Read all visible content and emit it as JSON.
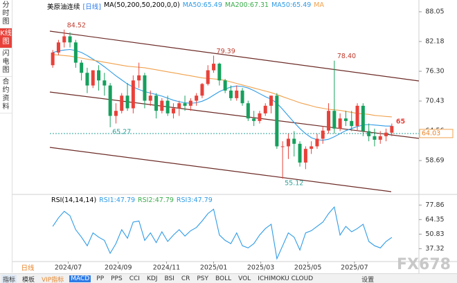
{
  "sidebar": [
    "分时图",
    "K线图",
    "闪电图",
    "合约资料"
  ],
  "chart_data": {
    "type": "candlestick",
    "title": "美原油连续",
    "period": "[日线]",
    "indicator": "MA(50,200,50,200,0,0)",
    "legend": [
      "MA50:65.49",
      "MA200:67.31",
      "MA50:65.49",
      "MA"
    ],
    "open": [
      77.5,
      80,
      82,
      83.2,
      82,
      78,
      76,
      73.5,
      76.5,
      74.5,
      73.5,
      67.5,
      68.5,
      71.5,
      69,
      74.5,
      75.5,
      70.5,
      71.5,
      68.5,
      70.5,
      68,
      69,
      70,
      69.5,
      70.5,
      71.5,
      73.8,
      76.5,
      77.8,
      74.5,
      72.5,
      71,
      72.5,
      70,
      67,
      66.5,
      68,
      69.5,
      71.5,
      61.5,
      61.5,
      63,
      62,
      58.3,
      61,
      61.5,
      63,
      64.6,
      68.5,
      65,
      67,
      66.5,
      65.5,
      69.5,
      64.5,
      63.5,
      62.8,
      63.5,
      64.2
    ],
    "high": [
      80.5,
      82.5,
      84.52,
      84,
      82.5,
      78.5,
      77,
      76.5,
      77.5,
      76,
      74,
      70,
      72,
      74,
      75.5,
      78,
      76,
      72.5,
      72,
      71,
      71.5,
      70,
      70.5,
      71.5,
      71,
      72,
      74,
      77.5,
      79.39,
      78,
      74.8,
      73.5,
      73.5,
      73,
      70.5,
      68.5,
      68.5,
      70,
      71.5,
      72,
      62.5,
      64,
      64.5,
      62.5,
      61.5,
      62.5,
      64,
      65.5,
      70,
      78.4,
      68,
      68.5,
      68.5,
      70,
      70,
      66,
      65,
      64.5,
      65,
      66
    ],
    "low": [
      77,
      79.5,
      81,
      81,
      77,
      74.5,
      72,
      73,
      72.5,
      71.5,
      65.27,
      66,
      68,
      68.5,
      68,
      73,
      69,
      69.5,
      67,
      68,
      67.5,
      67,
      67.5,
      68.5,
      68.5,
      69.5,
      71,
      73.5,
      76,
      73.5,
      72,
      70.5,
      70.5,
      69.5,
      66.5,
      65.5,
      66,
      67.5,
      68,
      61,
      55.12,
      59,
      59.5,
      57.5,
      57,
      60,
      61,
      62,
      64,
      64,
      64.5,
      65.5,
      64.5,
      64.5,
      63.5,
      62.5,
      61.5,
      62,
      62.5,
      63.5
    ],
    "close": [
      80,
      82,
      83.2,
      82,
      78,
      76,
      73.5,
      76.5,
      74.5,
      73.5,
      67.5,
      68.5,
      71.5,
      69,
      74.5,
      75.5,
      70.5,
      71.5,
      68.5,
      70.5,
      68,
      69,
      70,
      69.5,
      70.5,
      71.5,
      73.8,
      76.5,
      77.8,
      74.5,
      72.5,
      71,
      72.5,
      70,
      67,
      66.5,
      68,
      69.5,
      71.5,
      61.5,
      61.5,
      63,
      62,
      58.3,
      61,
      61.5,
      63,
      64.6,
      68.5,
      65,
      67,
      66.5,
      65.5,
      69.5,
      64.5,
      63.5,
      62.8,
      63.5,
      64.2,
      65.5
    ],
    "up_color": "#e8413a",
    "down_color": "#16a05d",
    "series": [
      {
        "name": "MA50",
        "color": "#2e9be6",
        "values": [
          80.0,
          80.3,
          80.5,
          80.6,
          80.4,
          80.0,
          79.4,
          78.7,
          78.0,
          77.2,
          76.3,
          75.4,
          74.6,
          73.8,
          73.2,
          72.7,
          72.3,
          72.0,
          71.7,
          71.4,
          71.0,
          70.6,
          70.3,
          70.1,
          70.0,
          70.1,
          70.4,
          70.9,
          71.6,
          72.3,
          72.8,
          73.2,
          73.4,
          73.3,
          73.0,
          72.5,
          71.9,
          71.3,
          70.8,
          70.0,
          68.8,
          67.5,
          66.2,
          65.0,
          64.0,
          63.2,
          62.8,
          62.7,
          62.9,
          63.4,
          64.0,
          64.6,
          65.0,
          65.4,
          65.7,
          65.8,
          65.7,
          65.6,
          65.5,
          65.49
        ]
      },
      {
        "name": "MA200",
        "color": "#f0a04b",
        "values": [
          79.6,
          79.5,
          79.4,
          79.3,
          79.1,
          78.9,
          78.7,
          78.5,
          78.3,
          78.1,
          77.9,
          77.7,
          77.5,
          77.3,
          77.2,
          77.1,
          77.0,
          76.8,
          76.6,
          76.4,
          76.2,
          76.0,
          75.8,
          75.6,
          75.4,
          75.2,
          75.0,
          74.9,
          74.8,
          74.7,
          74.5,
          74.2,
          73.9,
          73.6,
          73.3,
          73.0,
          72.7,
          72.4,
          72.1,
          71.7,
          71.3,
          70.9,
          70.5,
          70.1,
          69.8,
          69.5,
          69.2,
          69.0,
          68.8,
          68.7,
          68.6,
          68.4,
          68.2,
          68.0,
          67.9,
          67.8,
          67.6,
          67.5,
          67.4,
          67.31
        ]
      }
    ],
    "highs_marked": [
      84.52,
      79.39,
      {
        "value": 78.4,
        "label": "78.40"
      }
    ],
    "lows_marked": [
      65.27,
      55.12
    ],
    "last_marker": 65,
    "current_price": 64.03,
    "ylim": [
      52.42,
      89.0
    ],
    "yticks": [
      88.05,
      82.18,
      {
        "value": 76.3,
        "label": "76.30"
      },
      70.43,
      64.56,
      58.69
    ],
    "xlim": [
      0,
      60
    ],
    "xticks": [
      {
        "value": 3.2,
        "label": "2024/07"
      },
      {
        "value": 11.9,
        "label": "2024/09"
      },
      {
        "value": 20.3,
        "label": "2024/11"
      },
      {
        "value": 28.5,
        "label": "2025/01"
      },
      {
        "value": 36.7,
        "label": "2025/03"
      },
      {
        "value": 44.9,
        "label": "2025/05"
      },
      {
        "value": 53.0,
        "label": "2025/07"
      }
    ],
    "rsi": {
      "title": "RSI(14,14,14)",
      "legend": [
        "RSI1:47.79",
        "RSI2:47.79",
        "RSI3:47.79"
      ],
      "color": "#2e9be6",
      "values": [
        58,
        66,
        72,
        68,
        55,
        48,
        40,
        52,
        48,
        45,
        33,
        42,
        55,
        47,
        62,
        63,
        45,
        52,
        43,
        53,
        44,
        50,
        55,
        49,
        54,
        57,
        63,
        70,
        74,
        50,
        45,
        42,
        52,
        40,
        38,
        42,
        50,
        56,
        60,
        28,
        40,
        52,
        48,
        36,
        52,
        54,
        58,
        62,
        70,
        76,
        50,
        58,
        53,
        56,
        60,
        44,
        40,
        38,
        44,
        47.79
      ],
      "ylim": [
        26,
        89
      ],
      "yticks": [
        77.86,
        64.35,
        50.83,
        37.32
      ]
    }
  },
  "period_tab": "日线",
  "toolbar": [
    "指标",
    "模板",
    "VIP指标",
    "MACD",
    "PP",
    "PPS",
    "CCI",
    "KDJ",
    "BSI",
    "CR",
    "PSY",
    "BOLL",
    "VOL",
    "ICHIMOKU CLOUD",
    "设置"
  ],
  "watermark": "FX678"
}
